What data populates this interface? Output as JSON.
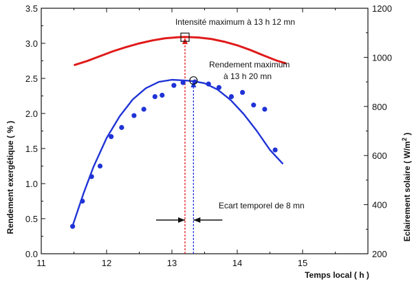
{
  "chart_data": {
    "type": "scatter",
    "xlabel": "Temps local ( h )",
    "ylabel_left": "Rendement exergétique ( % )",
    "ylabel_right_prefix": "Eclairement solaire ( W/m",
    "ylabel_right_sup": "2",
    "ylabel_right_suffix": " )",
    "xlim": [
      11,
      16
    ],
    "ylim_left": [
      0,
      3.5
    ],
    "ylim_right": [
      200,
      1200
    ],
    "x_ticks": [
      "11",
      "12",
      "13",
      "14",
      "15"
    ],
    "y_left_ticks": [
      "0.0",
      "0.5",
      "1.0",
      "1.5",
      "2.0",
      "2.5",
      "3.0",
      "3.5"
    ],
    "y_right_ticks": [
      "200",
      "400",
      "600",
      "800",
      "1000",
      "1200"
    ],
    "series": [
      {
        "kind": "points",
        "axis": "left",
        "color": "#1f33d6",
        "x": [
          11.48,
          11.63,
          11.77,
          11.9,
          12.07,
          12.23,
          12.42,
          12.57,
          12.74,
          12.85,
          13.03,
          13.17,
          13.35,
          13.56,
          13.72,
          13.91,
          14.08,
          14.25,
          14.42,
          14.58
        ],
        "y": [
          0.39,
          0.75,
          1.1,
          1.25,
          1.67,
          1.8,
          1.97,
          2.06,
          2.24,
          2.26,
          2.4,
          2.44,
          2.45,
          2.42,
          2.37,
          2.24,
          2.3,
          2.12,
          2.06,
          1.48
        ]
      },
      {
        "kind": "curve",
        "axis": "left",
        "color": "#1f33d6",
        "x": [
          11.48,
          11.65,
          11.8,
          12.0,
          12.2,
          12.4,
          12.6,
          12.8,
          13.0,
          13.2,
          13.33,
          13.5,
          13.7,
          13.9,
          14.1,
          14.3,
          14.5,
          14.7
        ],
        "y": [
          0.4,
          0.87,
          1.24,
          1.65,
          1.96,
          2.2,
          2.36,
          2.45,
          2.48,
          2.47,
          2.46,
          2.43,
          2.34,
          2.19,
          1.99,
          1.75,
          1.48,
          1.28
        ]
      },
      {
        "kind": "curve",
        "axis": "right",
        "color": "#e01a1a",
        "x": [
          11.5,
          11.7,
          11.9,
          12.1,
          12.3,
          12.5,
          12.7,
          12.9,
          13.1,
          13.2,
          13.4,
          13.6,
          13.8,
          14.0,
          14.2,
          14.4,
          14.6,
          14.75
        ],
        "y": [
          968,
          985,
          1005,
          1025,
          1042,
          1057,
          1069,
          1078,
          1082,
          1083,
          1081,
          1075,
          1064,
          1049,
          1030,
          1008,
          987,
          975
        ]
      }
    ],
    "markers": [
      {
        "shape": "square",
        "axis": "right",
        "x": 13.2,
        "y": 1082,
        "color": "#111111"
      },
      {
        "shape": "circle",
        "axis": "left",
        "x": 13.33,
        "y": 2.47,
        "color": "#111111"
      }
    ],
    "vlines": [
      {
        "x": 13.2,
        "color": "#e01a1a",
        "axis": "right",
        "top": 1082
      },
      {
        "x": 13.33,
        "color": "#1f33d6",
        "axis": "left",
        "top": 2.47
      }
    ],
    "annotations": {
      "intensity": "Intensité maximum à 13 h 12 mn",
      "rendement_line1": "Rendement maximum",
      "rendement_line2": "à 13 h 20 mn",
      "ecart": "Ecart temporel de 8 mn"
    }
  }
}
